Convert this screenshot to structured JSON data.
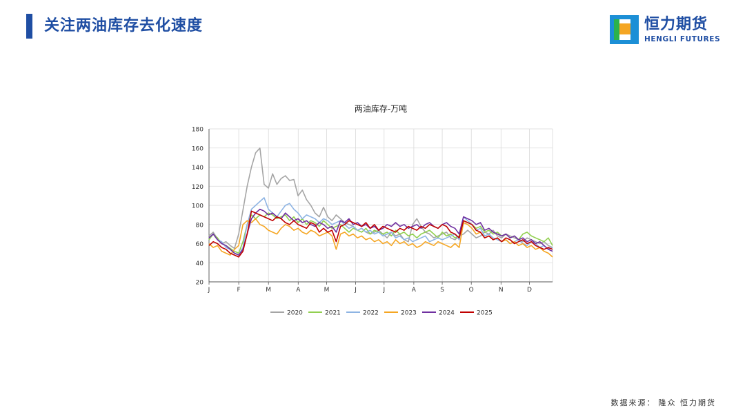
{
  "page": {
    "title": "关注两油库存去化速度",
    "source_label": "数据来源：",
    "source_value": "隆众 恒力期货"
  },
  "logo": {
    "name_cn": "恒力期货",
    "name_en": "HENGLI FUTURES",
    "colors": {
      "outer": "#1c8fd6",
      "inner": "#f5a623",
      "green": "#2bb24c",
      "text": "#1f4ea3"
    }
  },
  "chart_data": {
    "type": "line",
    "title": "两油库存-万吨",
    "xlabel": "",
    "ylabel": "",
    "x": "week of year (1-53)",
    "x_ticks": [
      "J",
      "F",
      "M",
      "A",
      "M",
      "J",
      "J",
      "A",
      "S",
      "O",
      "N",
      "D"
    ],
    "x_tick_weeks": [
      1,
      5.5,
      10,
      14.5,
      18.8,
      23.2,
      27.5,
      32,
      36.3,
      40.7,
      45.2,
      49.5
    ],
    "xlim": [
      1,
      53
    ],
    "yticks": [
      20,
      40,
      60,
      80,
      100,
      120,
      140,
      160,
      180
    ],
    "ylim": [
      20,
      180
    ],
    "grid": true,
    "legend_position": "bottom",
    "series": [
      {
        "name": "2020",
        "color": "#a5a5a5",
        "values": [
          68,
          72,
          65,
          60,
          62,
          58,
          55,
          70,
          95,
          120,
          140,
          155,
          160,
          122,
          118,
          133,
          122,
          128,
          131,
          126,
          127,
          110,
          116,
          106,
          100,
          92,
          88,
          98,
          88,
          84,
          90,
          86,
          82,
          80,
          78,
          74,
          76,
          72,
          70,
          72,
          74,
          70,
          66,
          72,
          68,
          70,
          64,
          62,
          80,
          86,
          78,
          72,
          70,
          66,
          68,
          70,
          72,
          66,
          64,
          68,
          70,
          74,
          70,
          66,
          68,
          72,
          70,
          74,
          68,
          66,
          70,
          68,
          66,
          64,
          62,
          66,
          64,
          62,
          60,
          62,
          58,
          56
        ]
      },
      {
        "name": "2021",
        "color": "#92d050",
        "values": [
          64,
          70,
          66,
          60,
          58,
          55,
          52,
          50,
          62,
          80,
          90,
          86,
          90,
          88,
          92,
          90,
          86,
          88,
          90,
          84,
          88,
          82,
          86,
          80,
          84,
          82,
          78,
          84,
          80,
          76,
          78,
          80,
          76,
          72,
          76,
          74,
          72,
          76,
          70,
          74,
          72,
          70,
          72,
          68,
          74,
          70,
          72,
          68,
          70,
          66,
          70,
          72,
          74,
          70,
          66,
          72,
          68,
          70,
          66,
          68,
          84,
          82,
          80,
          76,
          78,
          72,
          74,
          70,
          72,
          68,
          70,
          66,
          68,
          64,
          70,
          72,
          68,
          66,
          64,
          62,
          66,
          58
        ]
      },
      {
        "name": "2022",
        "color": "#8eb4e3",
        "values": [
          66,
          70,
          64,
          62,
          56,
          54,
          50,
          48,
          56,
          80,
          96,
          100,
          104,
          108,
          96,
          92,
          88,
          94,
          100,
          102,
          96,
          92,
          86,
          90,
          88,
          86,
          82,
          86,
          84,
          80,
          82,
          84,
          80,
          76,
          78,
          74,
          76,
          72,
          74,
          70,
          72,
          68,
          70,
          72,
          66,
          68,
          64,
          66,
          62,
          64,
          66,
          68,
          62,
          64,
          66,
          64,
          66,
          68,
          70,
          64,
          88,
          84,
          80,
          74,
          76,
          68,
          70,
          66,
          64,
          62,
          64,
          60,
          62,
          64,
          60,
          58,
          62,
          60,
          56,
          58,
          54,
          56
        ]
      },
      {
        "name": "2023",
        "color": "#f5a623",
        "values": [
          60,
          56,
          58,
          52,
          50,
          48,
          54,
          58,
          80,
          84,
          82,
          86,
          80,
          78,
          74,
          72,
          70,
          76,
          80,
          78,
          74,
          76,
          72,
          70,
          74,
          72,
          68,
          70,
          72,
          68,
          54,
          70,
          72,
          68,
          70,
          66,
          68,
          64,
          66,
          62,
          64,
          60,
          62,
          58,
          64,
          60,
          62,
          58,
          60,
          56,
          58,
          62,
          60,
          58,
          62,
          60,
          58,
          56,
          60,
          56,
          82,
          80,
          76,
          70,
          72,
          66,
          68,
          64,
          66,
          62,
          64,
          60,
          62,
          58,
          60,
          56,
          58,
          54,
          56,
          52,
          50,
          46
        ]
      },
      {
        "name": "2024",
        "color": "#7030a0",
        "values": [
          66,
          70,
          64,
          60,
          58,
          54,
          50,
          48,
          54,
          70,
          86,
          92,
          96,
          94,
          90,
          92,
          88,
          86,
          92,
          88,
          84,
          86,
          82,
          84,
          80,
          78,
          82,
          80,
          76,
          78,
          72,
          84,
          82,
          86,
          80,
          82,
          78,
          80,
          76,
          78,
          74,
          76,
          80,
          78,
          82,
          78,
          80,
          76,
          78,
          80,
          76,
          80,
          82,
          78,
          76,
          80,
          82,
          78,
          76,
          70,
          88,
          86,
          84,
          80,
          82,
          74,
          76,
          72,
          70,
          68,
          70,
          66,
          68,
          64,
          66,
          62,
          64,
          60,
          62,
          58,
          54,
          52
        ]
      },
      {
        "name": "2025",
        "color": "#c00000",
        "values": [
          58,
          62,
          60,
          56,
          54,
          50,
          48,
          46,
          52,
          70,
          94,
          92,
          90,
          88,
          86,
          84,
          88,
          86,
          82,
          80,
          84,
          80,
          78,
          76,
          82,
          80,
          72,
          76,
          72,
          74,
          62,
          78,
          80,
          84,
          82,
          80,
          78,
          82,
          76,
          80,
          74,
          78,
          76,
          74,
          72,
          76,
          74,
          78,
          76,
          74,
          78,
          76,
          80,
          78,
          76,
          80,
          78,
          72,
          70,
          66,
          84,
          82,
          80,
          74,
          72,
          66,
          68,
          64,
          66,
          62,
          66,
          64,
          60,
          62,
          64,
          60,
          62,
          58,
          56,
          54,
          56,
          54
        ]
      }
    ]
  }
}
